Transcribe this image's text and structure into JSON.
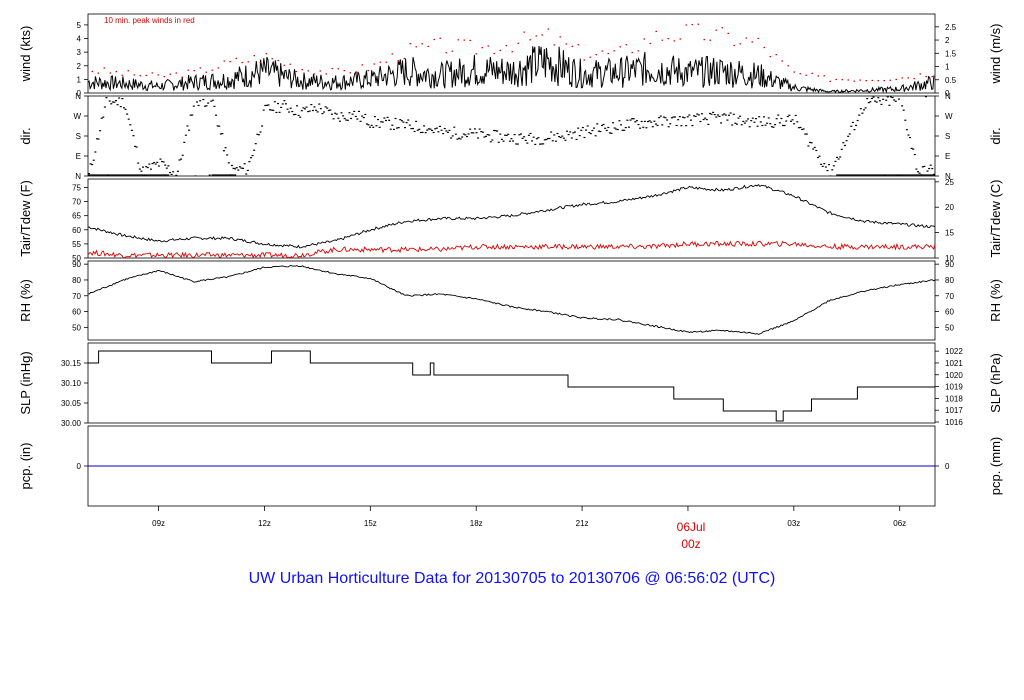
{
  "title": "UW Urban Horticulture Data for 20130705  to  20130706 @ 06:56:02  (UTC)",
  "colors": {
    "primary": "#000000",
    "peak": "#e00000",
    "precip": "#0000cc",
    "title": "#1010ff",
    "day_marker": "#e00000"
  },
  "x_axis": {
    "ticks": [
      {
        "label": "09z",
        "hour": 9
      },
      {
        "label": "12z",
        "hour": 12
      },
      {
        "label": "15z",
        "hour": 15
      },
      {
        "label": "18z",
        "hour": 18
      },
      {
        "label": "21z",
        "hour": 21
      },
      {
        "label": "00z",
        "hour": 24
      },
      {
        "label": "03z",
        "hour": 27
      },
      {
        "label": "06z",
        "hour": 30
      }
    ],
    "range_hours": [
      7,
      31
    ],
    "day_marker": {
      "hour": 24,
      "line1": "06Jul",
      "line2": "00z"
    }
  },
  "chart_data": [
    {
      "type": "line",
      "id": "wind",
      "ylabel_left": "wind (kts)",
      "ylabel_right": "wind (m/s)",
      "annotation": "10 min. peak winds in red",
      "ylim": [
        0,
        5.8
      ],
      "yticks_left": [
        "0",
        "1",
        "2",
        "3",
        "4",
        "5"
      ],
      "yticks_right": [
        "0",
        "0.5",
        "1",
        "1.5",
        "2",
        "2.5"
      ],
      "series": [
        {
          "x": [
            7,
            8,
            9,
            10,
            11,
            12,
            13,
            14,
            15,
            16,
            17,
            18,
            19,
            20,
            21,
            22,
            23,
            24,
            25,
            26,
            27,
            28,
            29,
            30,
            31
          ],
          "y": [
            0.8,
            0.7,
            0.5,
            0.8,
            1,
            1.6,
            0.9,
            0.8,
            1,
            1.6,
            1.3,
            1.7,
            1.6,
            2.3,
            1.4,
            1.5,
            1.8,
            1.5,
            1.6,
            1.3,
            0.4,
            0.1,
            0.2,
            0.3,
            0.8
          ]
        },
        {
          "name": "10 min. peak winds",
          "x": [
            7,
            8,
            9,
            10,
            11,
            12,
            13,
            14,
            15,
            16,
            17,
            18,
            19,
            20,
            21,
            22,
            23,
            24,
            25,
            26,
            27,
            28,
            29,
            30,
            31
          ],
          "y": [
            1.8,
            1.5,
            1.3,
            1.6,
            2.3,
            2.8,
            1.9,
            1.6,
            2,
            3.2,
            3.6,
            3.4,
            3.8,
            4.3,
            3,
            3,
            4.3,
            4.6,
            4.3,
            3.8,
            1.5,
            1.1,
            1.1,
            1.2,
            1.6
          ]
        }
      ]
    },
    {
      "type": "scatter",
      "id": "dir",
      "ylabel_left": "dir.",
      "ylabel_right": "dir.",
      "ylim": [
        0,
        360
      ],
      "yticks_left": [
        "N",
        "E",
        "S",
        "W",
        "N"
      ],
      "yticks_right": [
        "N",
        "E",
        "S",
        "W",
        "N"
      ],
      "series": [
        {
          "x": [
            7,
            7.5,
            8,
            8.5,
            9,
            9.5,
            10,
            10.5,
            11,
            11.5,
            12,
            12.5,
            13,
            13.5,
            14,
            14.5,
            15,
            15.5,
            16,
            16.5,
            17,
            17.5,
            18,
            18.5,
            19,
            19.5,
            20,
            20.5,
            21,
            21.5,
            22,
            22.5,
            23,
            23.5,
            24,
            24.5,
            25,
            25.5,
            26,
            26.5,
            27,
            28,
            29,
            30,
            30.5,
            31
          ],
          "y": [
            5,
            340,
            335,
            20,
            60,
            10,
            345,
            340,
            30,
            35,
            300,
            320,
            290,
            310,
            270,
            280,
            245,
            240,
            230,
            220,
            200,
            195,
            190,
            180,
            175,
            170,
            175,
            185,
            200,
            215,
            225,
            240,
            245,
            250,
            255,
            260,
            265,
            250,
            245,
            250,
            255,
            20,
            330,
            345,
            20,
            30
          ]
        }
      ]
    },
    {
      "type": "line",
      "id": "temp",
      "ylabel_left": "Tair/Tdew (F)",
      "ylabel_right": "Tair/Tdew (C)",
      "ylim": [
        50,
        78
      ],
      "yticks_left": [
        "50",
        "55",
        "60",
        "65",
        "70",
        "75"
      ],
      "yticks_right": [
        "10",
        "15",
        "20",
        "25"
      ],
      "series": [
        {
          "x": [
            7,
            8,
            9,
            10,
            11,
            12,
            13,
            14,
            15,
            16,
            17,
            18,
            19,
            20,
            21,
            22,
            23,
            24,
            25,
            26,
            27,
            28,
            29,
            30,
            31
          ],
          "y": [
            61,
            58,
            56,
            57,
            57,
            55,
            54,
            56,
            60,
            63,
            64,
            64,
            65,
            67,
            69,
            70,
            72,
            75,
            74,
            76,
            72,
            66,
            63,
            62,
            61
          ]
        },
        {
          "x": [
            7,
            8,
            9,
            10,
            11,
            12,
            13,
            14,
            15,
            16,
            17,
            18,
            19,
            20,
            21,
            22,
            23,
            24,
            25,
            26,
            27,
            28,
            29,
            30,
            31
          ],
          "y": [
            52,
            51,
            51,
            51,
            51,
            51,
            51,
            53,
            53,
            53,
            53,
            54,
            54,
            54,
            54,
            54,
            54,
            55,
            55,
            55,
            55,
            54,
            54,
            54,
            54
          ]
        }
      ]
    },
    {
      "type": "line",
      "id": "rh",
      "ylabel_left": "RH (%)",
      "ylabel_right": "RH (%)",
      "ylim": [
        42,
        92
      ],
      "yticks_left": [
        "50",
        "60",
        "70",
        "80",
        "90"
      ],
      "yticks_right": [
        "50",
        "60",
        "70",
        "80",
        "90"
      ],
      "series": [
        {
          "x": [
            7,
            8,
            9,
            10,
            11,
            12,
            13,
            14,
            15,
            16,
            17,
            18,
            19,
            20,
            21,
            22,
            23,
            24,
            25,
            26,
            27,
            28,
            29,
            30,
            31
          ],
          "y": [
            71,
            80,
            86,
            79,
            82,
            88,
            89,
            84,
            81,
            70,
            71,
            68,
            63,
            60,
            56,
            55,
            51,
            47,
            48,
            46,
            54,
            67,
            73,
            77,
            80
          ]
        }
      ]
    },
    {
      "type": "line",
      "id": "slp",
      "ylabel_left": "SLP (inHg)",
      "ylabel_right": "SLP (hPa)",
      "ylim": [
        30.0,
        30.2
      ],
      "yticks_left": [
        "30.00",
        "30.05",
        "30.10",
        "30.15"
      ],
      "yticks_right": [
        "1016",
        "1017",
        "1018",
        "1019",
        "1020",
        "1021",
        "1022"
      ],
      "series": [
        {
          "x": [
            7,
            7.3,
            7.3,
            10.5,
            10.5,
            12.2,
            12.2,
            13.3,
            13.3,
            16.2,
            16.2,
            16.7,
            16.7,
            16.8,
            16.8,
            20.6,
            20.6,
            23.6,
            23.6,
            25,
            25,
            26.5,
            26.5,
            26.7,
            26.7,
            27.5,
            27.5,
            28.8,
            28.8,
            31
          ],
          "y": [
            30.15,
            30.15,
            30.18,
            30.18,
            30.15,
            30.15,
            30.18,
            30.18,
            30.15,
            30.15,
            30.12,
            30.12,
            30.15,
            30.15,
            30.12,
            30.12,
            30.09,
            30.09,
            30.06,
            30.06,
            30.03,
            30.03,
            30.005,
            30.005,
            30.03,
            30.03,
            30.06,
            30.06,
            30.09,
            30.09
          ]
        }
      ]
    },
    {
      "type": "line",
      "id": "pcp",
      "ylabel_left": "pcp. (in)",
      "ylabel_right": "pcp. (mm)",
      "ylim": [
        -1,
        1
      ],
      "yticks_left": [
        "0"
      ],
      "yticks_right": [
        "0"
      ],
      "series": [
        {
          "x": [
            7,
            31
          ],
          "y": [
            0,
            0
          ]
        }
      ]
    }
  ]
}
